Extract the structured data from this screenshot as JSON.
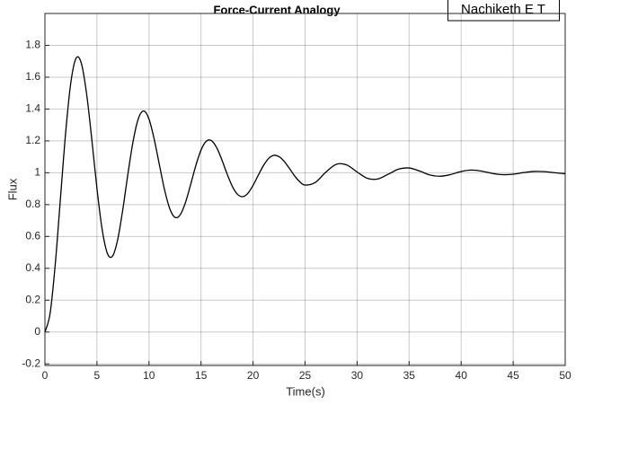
{
  "chart_data": {
    "type": "line",
    "title": "Force-Current Analogy",
    "xlabel": "Time(s)",
    "ylabel": "Flux",
    "annotation": "Nachiketh E T",
    "color": "#000000",
    "grid": true,
    "xlim": [
      0,
      50
    ],
    "ylim": [
      -0.21,
      2
    ],
    "xticks": [
      0,
      5,
      10,
      15,
      20,
      25,
      30,
      35,
      40,
      45,
      50
    ],
    "yticks": [
      -0.2,
      0,
      0.2,
      0.4,
      0.6,
      0.8,
      1,
      1.2,
      1.4,
      1.6,
      1.8
    ],
    "x": [
      0,
      0.5,
      1,
      1.5,
      2,
      2.5,
      3,
      3.5,
      4,
      4.5,
      5,
      5.5,
      6,
      6.5,
      7,
      7.5,
      8,
      8.5,
      9,
      9.5,
      10,
      10.5,
      11,
      11.5,
      12,
      12.5,
      13,
      13.5,
      14,
      14.5,
      15,
      15.5,
      16,
      16.5,
      17,
      17.5,
      18,
      18.5,
      19,
      19.5,
      20,
      20.5,
      21,
      21.5,
      22,
      22.5,
      23,
      23.5,
      24,
      24.5,
      25,
      26,
      27,
      28,
      29,
      30,
      31,
      32,
      33,
      34,
      35,
      36,
      37,
      38,
      39,
      40,
      41,
      42,
      43,
      44,
      45,
      46,
      47,
      48,
      49,
      50
    ],
    "values": [
      0,
      0.118,
      0.431,
      0.846,
      1.258,
      1.571,
      1.72,
      1.687,
      1.498,
      1.212,
      0.901,
      0.644,
      0.494,
      0.477,
      0.583,
      0.776,
      1.003,
      1.207,
      1.344,
      1.388,
      1.337,
      1.211,
      1.05,
      0.892,
      0.774,
      0.72,
      0.736,
      0.812,
      0.925,
      1.045,
      1.142,
      1.198,
      1.202,
      1.158,
      1.082,
      0.994,
      0.916,
      0.865,
      0.85,
      0.871,
      0.921,
      0.984,
      1.045,
      1.09,
      1.109,
      1.101,
      1.071,
      1.027,
      0.98,
      0.943,
      0.923,
      0.94,
      1.004,
      1.053,
      1.049,
      1.005,
      0.965,
      0.961,
      0.991,
      1.023,
      1.03,
      1.011,
      0.986,
      0.978,
      0.989,
      1.008,
      1.017,
      1.01,
      0.996,
      0.988,
      0.991,
      1.001,
      1.008,
      1.007,
      1,
      0.994
    ]
  }
}
